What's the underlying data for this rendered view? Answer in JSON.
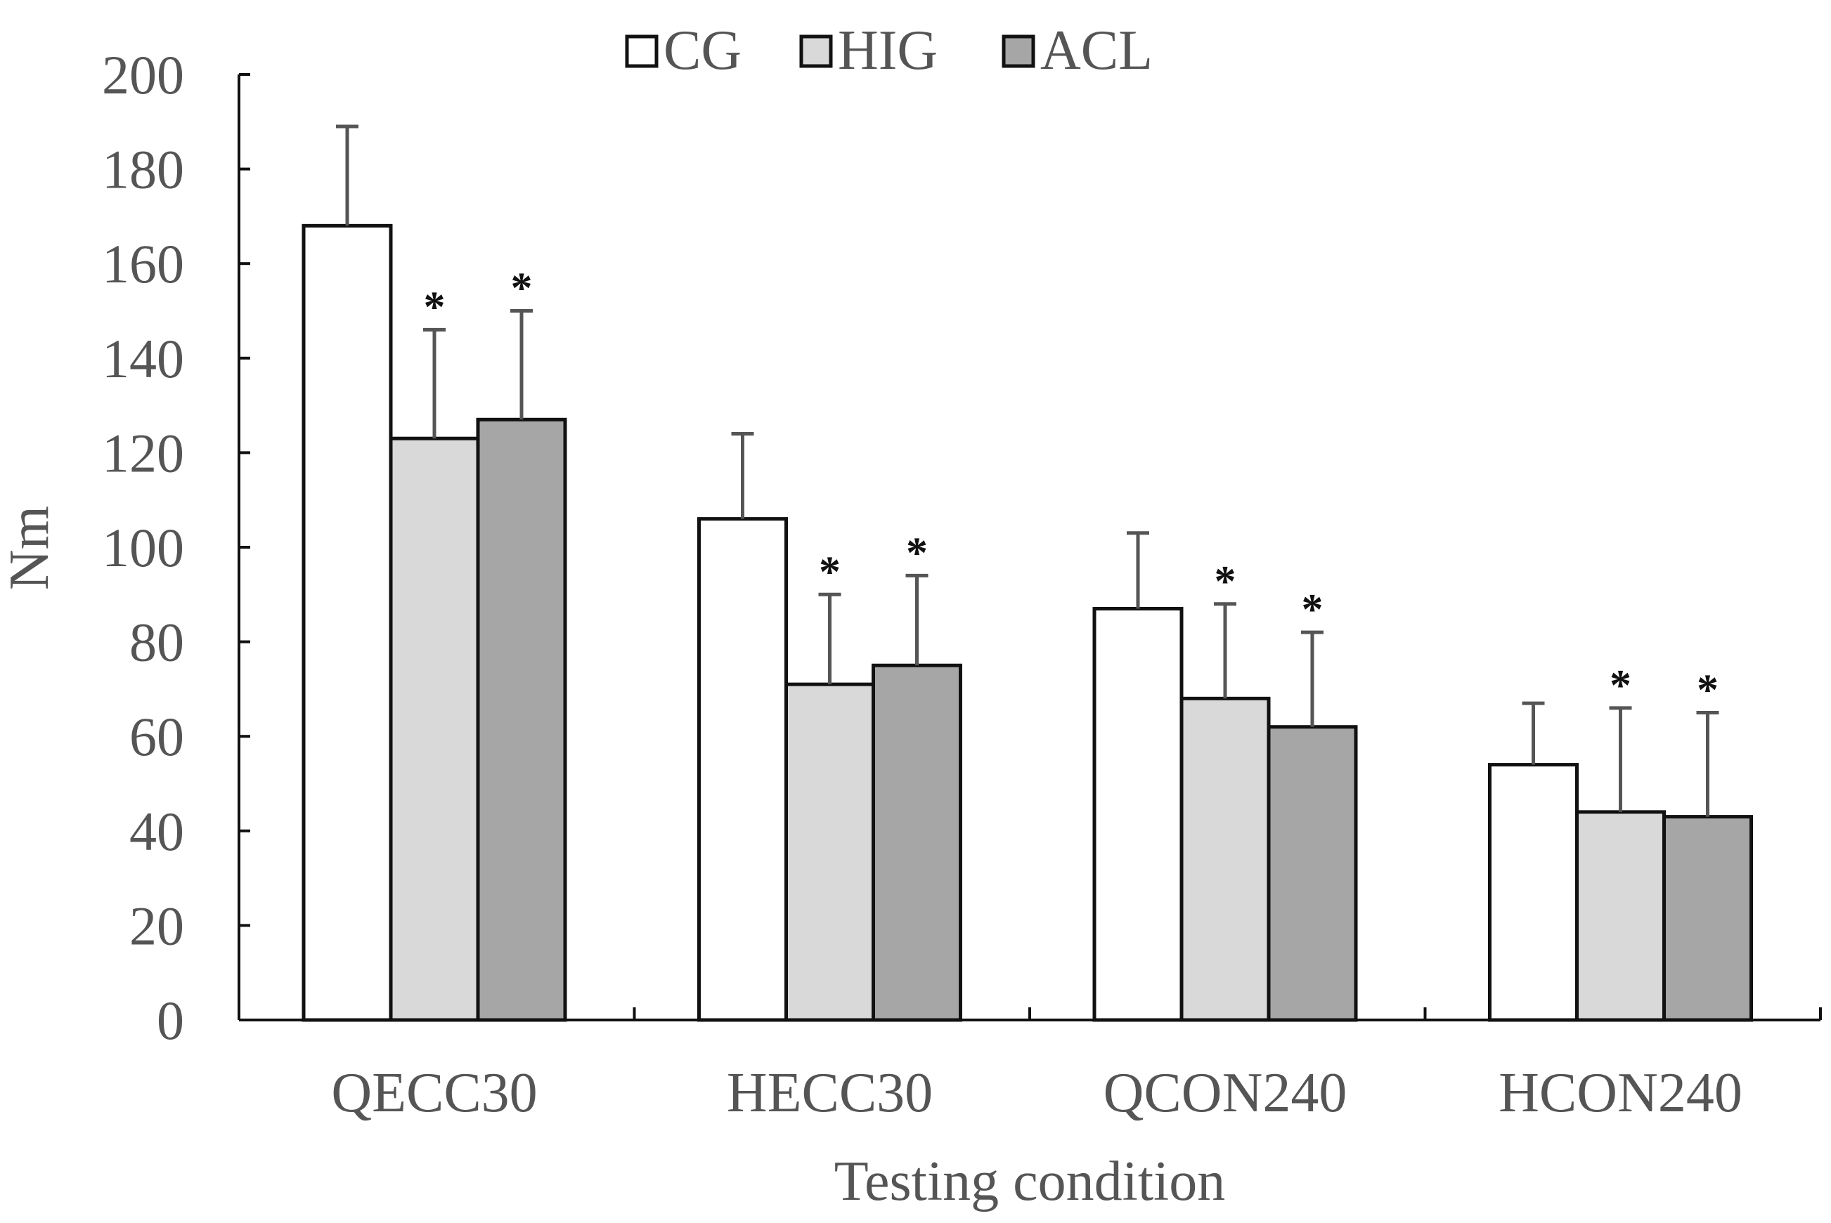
{
  "chart_data": {
    "type": "bar",
    "title": "",
    "xlabel": "Testing condition",
    "ylabel": "Nm",
    "ylim": [
      0,
      200
    ],
    "yticks": [
      "0",
      "20",
      "40",
      "60",
      "80",
      "100",
      "120",
      "140",
      "160",
      "180",
      "200"
    ],
    "categories": [
      "QECC30",
      "HECC30",
      "QCON240",
      "HCON240"
    ],
    "legend_position": "top-center",
    "series": [
      {
        "name": "CG",
        "color": "#ffffff",
        "values": [
          168,
          106,
          87,
          54
        ],
        "error": [
          21,
          18,
          16,
          13
        ],
        "significance": [
          "",
          "",
          "",
          ""
        ]
      },
      {
        "name": "HIG",
        "color": "#d9d9d9",
        "values": [
          123,
          71,
          68,
          44
        ],
        "error": [
          23,
          19,
          20,
          22
        ],
        "significance": [
          "*",
          "*",
          "*",
          "*"
        ]
      },
      {
        "name": "ACL",
        "color": "#a6a6a6",
        "values": [
          127,
          75,
          62,
          43
        ],
        "error": [
          23,
          19,
          20,
          22
        ],
        "significance": [
          "*",
          "*",
          "*",
          "*"
        ]
      }
    ]
  }
}
